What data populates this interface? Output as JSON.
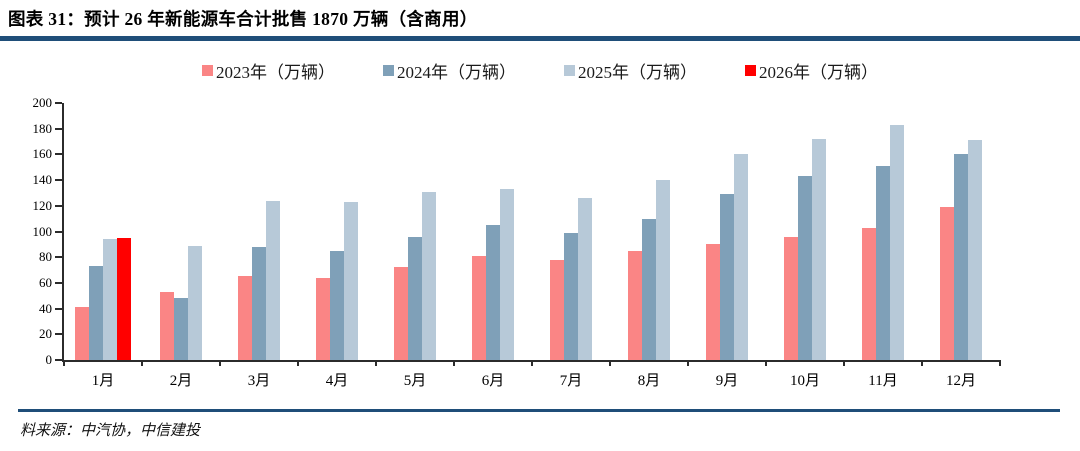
{
  "title": "图表 31：预计 26 年新能源车合计批售 1870 万辆（含商用）",
  "footer": {
    "source": "料来源：中汽协，中信建投"
  },
  "colors": {
    "accent": "#1F4E79",
    "axis": "#2b2b2b",
    "series_2023": "#FA8585",
    "series_2024": "#7FA0B8",
    "series_2025": "#B7C9D8",
    "series_2026": "#FF0000"
  },
  "chart_data": {
    "type": "bar",
    "title": "预计 26 年新能源车合计批售 1870 万辆（含商用）",
    "categories": [
      "1月",
      "2月",
      "3月",
      "4月",
      "5月",
      "6月",
      "7月",
      "8月",
      "9月",
      "10月",
      "11月",
      "12月"
    ],
    "series": [
      {
        "name": "2023年（万辆）",
        "color": "#FA8585",
        "values": [
          41,
          53,
          65,
          64,
          72,
          81,
          78,
          85,
          90,
          96,
          103,
          119
        ]
      },
      {
        "name": "2024年（万辆）",
        "color": "#7FA0B8",
        "values": [
          73,
          48,
          88,
          85,
          96,
          105,
          99,
          110,
          129,
          143,
          151,
          160
        ]
      },
      {
        "name": "2025年（万辆）",
        "color": "#B7C9D8",
        "values": [
          94,
          89,
          124,
          123,
          131,
          133,
          126,
          140,
          160,
          172,
          183,
          171
        ]
      },
      {
        "name": "2026年（万辆）",
        "color": "#FF0000",
        "values": [
          95,
          null,
          null,
          null,
          null,
          null,
          null,
          null,
          null,
          null,
          null,
          null
        ]
      }
    ],
    "xlabel": "",
    "ylabel": "",
    "ylim": [
      0,
      200
    ],
    "yticks": [
      0,
      20,
      40,
      60,
      80,
      100,
      120,
      140,
      160,
      180,
      200
    ],
    "legend_position": "top",
    "grid": false
  }
}
